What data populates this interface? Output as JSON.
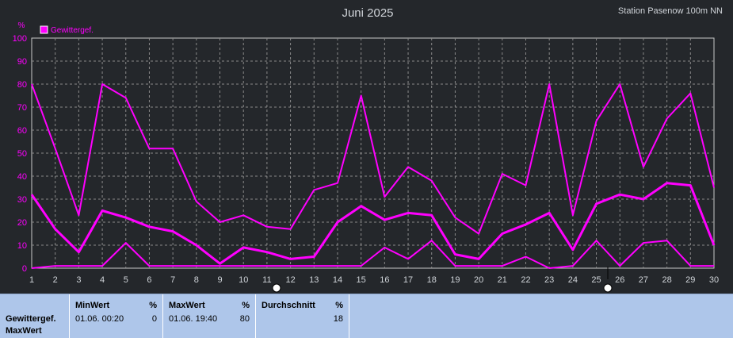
{
  "header": {
    "title": "Juni 2025",
    "station": "Station Pasenow  100m NN"
  },
  "legend": {
    "label": "Gewittergef.",
    "color": "#ff00ff"
  },
  "chart_data": {
    "type": "line",
    "title": "Juni 2025",
    "ylabel": "%",
    "ylim": [
      0,
      100
    ],
    "yticks": [
      0,
      10,
      20,
      30,
      40,
      50,
      60,
      70,
      80,
      90,
      100
    ],
    "x": [
      1,
      2,
      3,
      4,
      5,
      6,
      7,
      8,
      9,
      10,
      11,
      12,
      13,
      14,
      15,
      16,
      17,
      18,
      19,
      20,
      21,
      22,
      23,
      24,
      25,
      26,
      27,
      28,
      29,
      30
    ],
    "grid": true,
    "legend_position": "top-left",
    "series": [
      {
        "role": "max",
        "values": [
          80,
          52,
          23,
          80,
          74,
          52,
          52,
          29,
          20,
          23,
          18,
          17,
          34,
          37,
          75,
          31,
          44,
          38,
          22,
          15,
          41,
          36,
          80,
          23,
          64,
          80,
          44,
          65,
          76,
          35
        ],
        "width": 2
      },
      {
        "role": "avg",
        "values": [
          32,
          17,
          7,
          25,
          22,
          18,
          16,
          10,
          2,
          9,
          7,
          4,
          5,
          20,
          27,
          21,
          24,
          23,
          6,
          4,
          15,
          19,
          24,
          8,
          28,
          32,
          30,
          37,
          36,
          10
        ],
        "width": 3
      },
      {
        "role": "min",
        "values": [
          0,
          1,
          1,
          1,
          11,
          1,
          1,
          1,
          1,
          1,
          1,
          1,
          1,
          1,
          1,
          9,
          4,
          12,
          1,
          1,
          1,
          5,
          0,
          1,
          12,
          1,
          11,
          12,
          1,
          1
        ],
        "width": 2
      }
    ]
  },
  "stats": {
    "row_label_line1": "Gewittergef.",
    "row_label_line2": "MaxWert",
    "min": {
      "header": "MinWert",
      "unit": "%",
      "time": "01.06.  00:20",
      "value": "0"
    },
    "max": {
      "header": "MaxWert",
      "unit": "%",
      "time": "01.06.  19:40",
      "value": "80"
    },
    "avg": {
      "header": "Durchschnitt",
      "unit": "%",
      "value": "18"
    }
  }
}
